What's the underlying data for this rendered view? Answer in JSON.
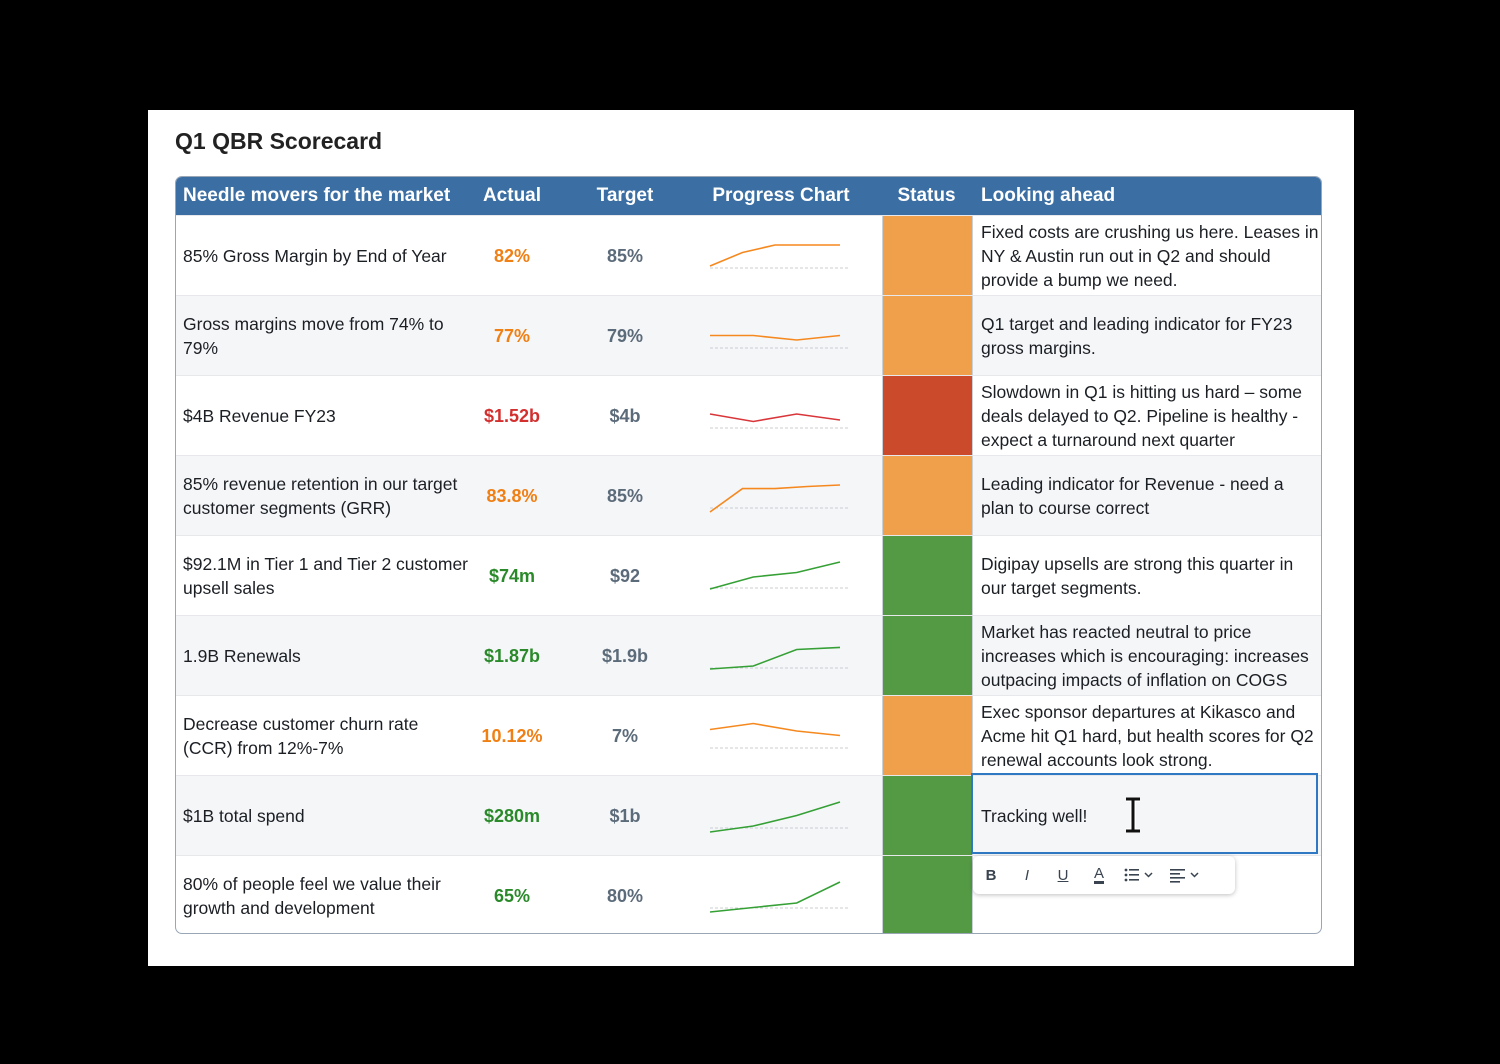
{
  "title": "Q1 QBR Scorecard",
  "headers": {
    "metric": "Needle movers for the market",
    "actual": "Actual",
    "target": "Target",
    "chart": "Progress Chart",
    "status": "Status",
    "ahead": "Looking ahead"
  },
  "colors": {
    "header": "#3b6fa3",
    "orange": "#f0a04a",
    "red": "#cc4a2c",
    "green": "#549a45"
  },
  "rows": [
    {
      "metric": "85% Gross Margin by End of Year",
      "actual": "82%",
      "actual_tone": "orange",
      "target": "85%",
      "status": "orange",
      "ahead": "Fixed costs are crushing us here. Leases in NY & Austin run out in Q2 and should provide a bump we need.",
      "trend": [
        0.2,
        0.65,
        0.9,
        0.9,
        0.9
      ]
    },
    {
      "metric": "Gross margins move from 74% to 79%",
      "actual": "77%",
      "actual_tone": "orange",
      "target": "79%",
      "status": "orange",
      "ahead": "Q1 target and leading indicator for FY23 gross margins.",
      "trend": [
        0.55,
        0.55,
        0.4,
        0.55
      ]
    },
    {
      "metric": "$4B Revenue FY23",
      "actual": "$1.52b",
      "actual_tone": "red",
      "target": "$4b",
      "status": "red",
      "ahead": "Slowdown in Q1 is hitting us hard – some deals delayed to Q2. Pipeline is healthy - expect a turnaround next quarter",
      "trend": [
        0.6,
        0.35,
        0.6,
        0.4
      ]
    },
    {
      "metric": "85% revenue retention in our target customer segments (GRR)",
      "actual": "83.8%",
      "actual_tone": "orange",
      "target": "85%",
      "status": "orange",
      "ahead": "Leading indicator for Revenue - need a plan to course correct",
      "trend": [
        0.0,
        0.78,
        0.78,
        0.85,
        0.9
      ]
    },
    {
      "metric": "$92.1M in Tier 1 and Tier 2 customer upsell sales",
      "actual": "$74m",
      "actual_tone": "green",
      "target": "$92",
      "status": "green",
      "ahead": "Digipay upsells are strong this quarter in our target segments.",
      "trend": [
        0.1,
        0.5,
        0.65,
        1.0
      ]
    },
    {
      "metric": "1.9B Renewals",
      "actual": "$1.87b",
      "actual_tone": "green",
      "target": "$1.9b",
      "status": "green",
      "ahead": "Market has reacted neutral to price increases which is encouraging: increases outpacing impacts of inflation on COGS",
      "trend": [
        0.1,
        0.2,
        0.75,
        0.82
      ]
    },
    {
      "metric": "Decrease customer churn rate (CCR) from 12%-7%",
      "actual": "10.12%",
      "actual_tone": "orange",
      "target": "7%",
      "status": "orange",
      "ahead": "Exec sponsor departures at Kikasco and Acme hit Q1 hard, but health scores for Q2 renewal accounts look strong.",
      "trend": [
        0.75,
        0.95,
        0.7,
        0.55
      ]
    },
    {
      "metric": "$1B total spend",
      "actual": "$280m",
      "actual_tone": "green",
      "target": "$1b",
      "status": "green",
      "ahead": "Tracking well!",
      "trend": [
        0.0,
        0.2,
        0.55,
        1.0
      ]
    },
    {
      "metric": "80% of people feel we value their growth and development",
      "actual": "65%",
      "actual_tone": "green",
      "target": "80%",
      "status": "green",
      "ahead": "",
      "trend": [
        0.0,
        0.15,
        0.3,
        1.0
      ]
    }
  ],
  "toolbar": {
    "bold": "B",
    "italic": "I",
    "underline": "U",
    "color": "A"
  }
}
